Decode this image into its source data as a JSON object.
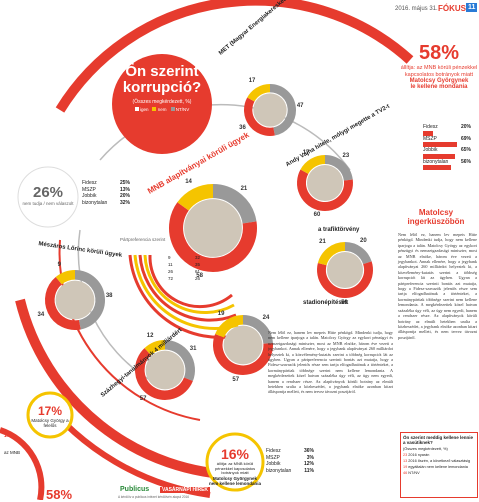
{
  "header": {
    "date": "2016. május 31.",
    "section": "FÓKUSZ",
    "page_no": "11"
  },
  "title_bubble": {
    "line1": "Ön szerint",
    "line2": "korrupció?",
    "sub": "(Összes megkérdezett, %)",
    "legend": [
      "igen",
      "nem",
      "NT/NV"
    ]
  },
  "right_stat": {
    "big": "58%",
    "text": "állítja: az MNB körüli pénzekkel kapcsolatos botrányok miatt",
    "name": "Matolcsy Györgynek",
    "tail": "le kellene mondania",
    "rows": [
      {
        "label": "Fidesz",
        "value": "20%"
      },
      {
        "label": "MSZP",
        "value": "69%"
      },
      {
        "label": "Jobbik",
        "value": "65%"
      },
      {
        "label": "bizonytalan",
        "value": "56%"
      }
    ]
  },
  "left_stat": {
    "big": "26%",
    "text": "nem tudja / nem válaszolt",
    "rows": [
      {
        "label": "Fidesz",
        "value": "25%"
      },
      {
        "label": "MSZP",
        "value": "13%"
      },
      {
        "label": "Jobbik",
        "value": "20%"
      },
      {
        "label": "bizonytalan",
        "value": "32%"
      }
    ]
  },
  "bottom_stat": {
    "big": "16%",
    "text": "állítja: az MNB körüli pénzekkel kapcsolatos botrányok miatt",
    "name": "Matolcsy Györgynek",
    "tail": "nem kellene lemondania",
    "rows": [
      {
        "label": "Fidesz",
        "value": "36%"
      },
      {
        "label": "MSZP",
        "value": "3%"
      },
      {
        "label": "Jobbik",
        "value": "12%"
      },
      {
        "label": "bizonytalan",
        "value": "11%"
      }
    ]
  },
  "left_small": {
    "big": "17%",
    "text": "Matolcsy György a felelős"
  },
  "left_bottom_big": "58%",
  "left_edge_value": "17",
  "left_edge_label": "az MNB",
  "circles": [
    {
      "name": "met",
      "label": "MET (Magyar Energiakereskedő) körüli ügyek",
      "values": [
        "47",
        "36",
        "17"
      ]
    },
    {
      "name": "andy",
      "label": "Andy Vajna hitele, mólygi megette a TV2-t",
      "values": [
        "23",
        "60",
        "17"
      ]
    },
    {
      "name": "mnb",
      "label": "MNB alapítványai körüli ügyek",
      "values": [
        "21",
        "58",
        "14"
      ]
    },
    {
      "name": "mesz",
      "label": "Mészáros Lőrinc körüli ügyek",
      "values": [
        "38",
        "34",
        "9"
      ]
    },
    {
      "name": "trafik",
      "label": "a trafiktörvény",
      "values": [
        "20",
        "59",
        "21"
      ]
    },
    {
      "name": "stad",
      "label": "stadionépítések",
      "values": [
        "24",
        "57",
        "19"
      ]
    },
    {
      "name": "szaz",
      "label": "Százhegyi-tanulmányok 4 milliárdért",
      "values": [
        "31",
        "57",
        "12"
      ]
    }
  ],
  "spiral": {
    "label": "Pártpreferencia szerint",
    "values": [
      "9",
      "11",
      "26",
      "72",
      "32",
      "35",
      "61",
      "26"
    ]
  },
  "article": {
    "heading": "Matolcsy ingerküszöbön",
    "body": "Nem lélöl ez, hanem lev mepeis Hitte pénkögd. Mindenki tudja, hogy nem kellene iparjoga a talán. Matolcsy György az egykori pénzügyi és nemzetgazdasági miniszter, most az MNB elnöke, három éve vezeti a jegybankot. Annak ellenére, hogy a jegybank alapítványai 260 milliárdot helyeztek ki, a közvélemény-kutatás szerint a többség korrupciót lát az ügyben. Ugyan a pártpreferencia szerinti bontás azt mutatja, hogy a Fidesz-szavazók jelentős része sem tartja elfogadhatónak a történteket, a kormánypártiak többsége szerint nem kellene lemondania. A megkérdezettek közel hatvan százaléka úgy véli, az ügy nem egyedi, hanem a rendszer része. Az alapítványok körüli botrány az elmúlt hetekben uralta a közbeszédet, a jegybank elnöke azonban kitart álláspontja mellett, és nem tervez távozni posztjáról."
  },
  "sidebar_box": {
    "title": "Ön szerint meddig kellene lennie a vasútiknek?",
    "sub": "(Összes megkérdezett, %)",
    "items": [
      "2016 nyarán",
      "2016 őszén, a következő választásig",
      "egyáltalán nem kellene lemondania",
      "NT/NV"
    ],
    "values": [
      "23",
      "13",
      "19",
      "46"
    ]
  },
  "credits": {
    "left": "Publicus",
    "right": "VASÁRNAPI HÍREK",
    "note": "A kérdőív a publicus intézet kérdőívén alapul 2016"
  }
}
